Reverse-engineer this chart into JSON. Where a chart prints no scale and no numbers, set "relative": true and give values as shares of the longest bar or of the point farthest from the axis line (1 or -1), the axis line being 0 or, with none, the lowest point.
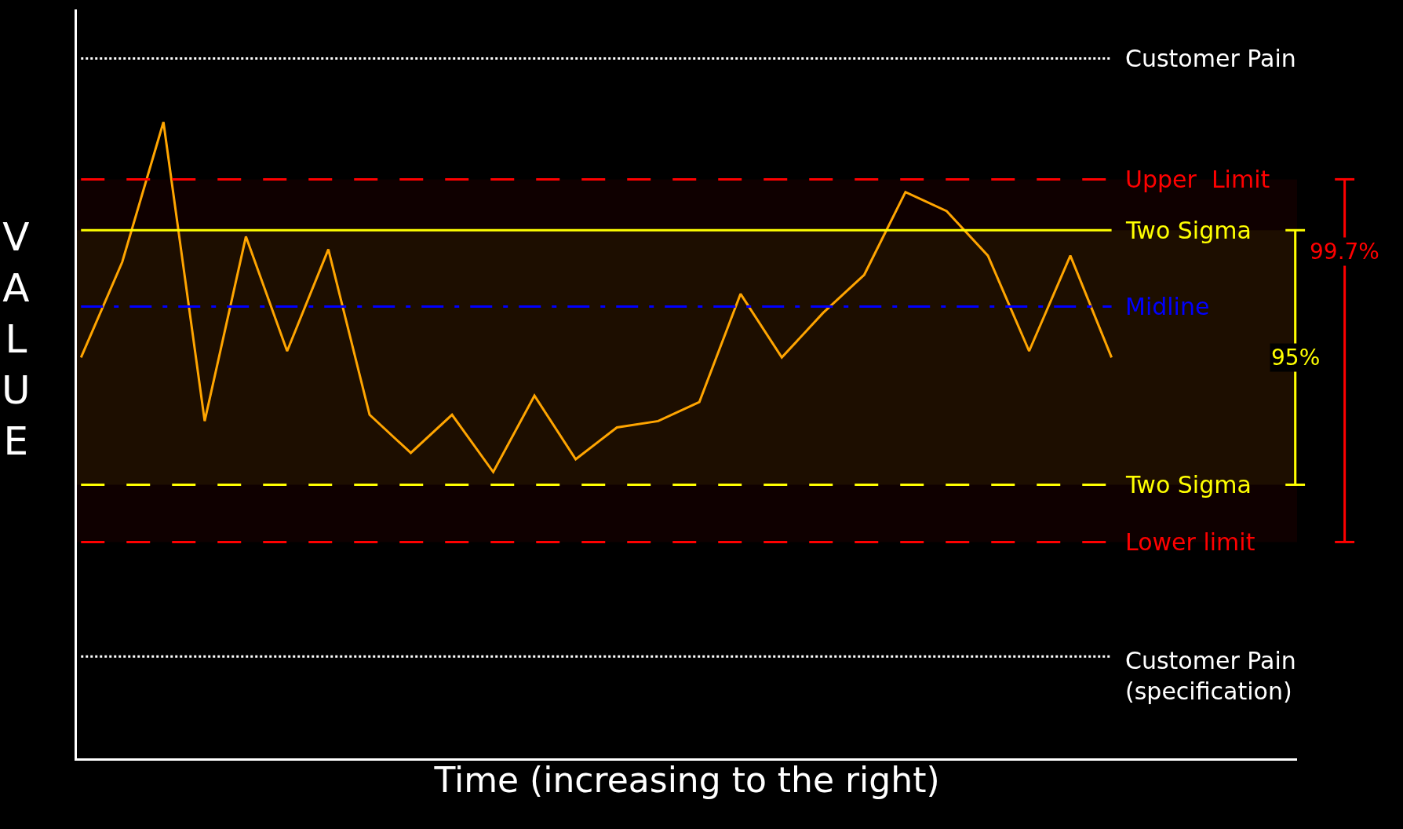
{
  "chart_data": {
    "type": "line",
    "relative": true,
    "xlabel": "Time (increasing to the right)",
    "ylabel": "VALUE",
    "categories": [
      null,
      null,
      null,
      null,
      null,
      null,
      null,
      null,
      null,
      null,
      null,
      null,
      null,
      null,
      null,
      null,
      null,
      null,
      null,
      null,
      null,
      null,
      null,
      null,
      null,
      null
    ],
    "series": [
      {
        "color": "#ffa500",
        "values": [
          0.63,
          0.78,
          1.0,
          0.53,
          0.82,
          0.64,
          0.8,
          0.54,
          0.48,
          0.54,
          0.45,
          0.57,
          0.47,
          0.52,
          0.53,
          0.56,
          0.73,
          0.63,
          0.7,
          0.76,
          0.89,
          0.86,
          0.79,
          0.64,
          0.79,
          0.63
        ]
      }
    ],
    "ref_lines": [
      {
        "axis": "y",
        "value": 1.1,
        "label": "Customer Pain",
        "color": "#ffffff",
        "line_style": "dotted"
      },
      {
        "axis": "y",
        "value": 0.91,
        "label": "Upper  Limit",
        "color": "#ff0000",
        "line_style": "dashed"
      },
      {
        "axis": "y",
        "value": 0.83,
        "label": "Two Sigma",
        "color": "#ffff00",
        "line_style": "solid"
      },
      {
        "axis": "y",
        "value": 0.71,
        "label": "Midline",
        "color": "#0000ff",
        "line_style": "dashdot"
      },
      {
        "axis": "y",
        "value": 0.43,
        "label": "Two Sigma",
        "color": "#ffff00",
        "line_style": "dashed"
      },
      {
        "axis": "y",
        "value": 0.34,
        "label": "Lower limit",
        "color": "#ff0000",
        "line_style": "dashed"
      },
      {
        "axis": "y",
        "value": 0.16,
        "label": "Customer Pain\n(specification)",
        "color": "#ffffff",
        "line_style": "dotted"
      }
    ],
    "bands": [
      {
        "axis": "y",
        "from": 0.43,
        "to": 0.83,
        "label": "95%",
        "color": "#ffff00"
      },
      {
        "axis": "y",
        "from": 0.34,
        "to": 0.91,
        "label": "99.7%",
        "color": "#ff0000"
      }
    ],
    "marker": "none"
  }
}
